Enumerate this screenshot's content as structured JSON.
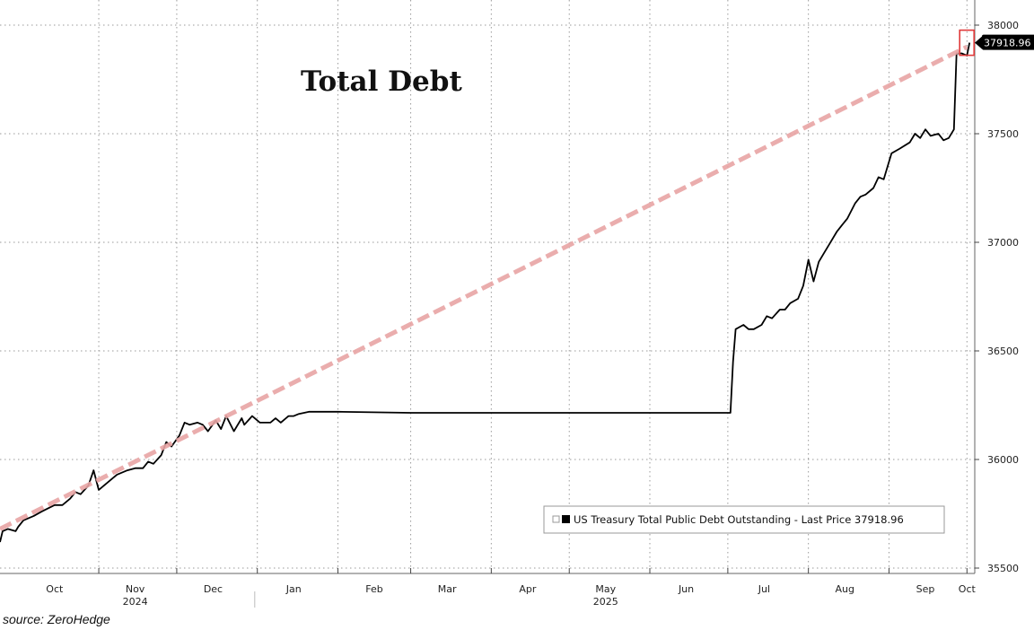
{
  "chart_data": {
    "type": "line",
    "title": "Total Debt",
    "source": "source: ZeroHedge",
    "xlabel": "",
    "ylabel": "",
    "x_range": [
      "2024-09-24",
      "2025-10-04"
    ],
    "ylim": [
      35500,
      38000
    ],
    "y_ticks": [
      {
        "value": 38000,
        "label": "38000"
      },
      {
        "value": 37500,
        "label": "37500"
      },
      {
        "value": 37000,
        "label": "37000"
      },
      {
        "value": 36500,
        "label": "36500"
      },
      {
        "value": 36000,
        "label": "36000"
      },
      {
        "value": 35500,
        "label": "35500"
      }
    ],
    "x_ticks": [
      {
        "date": "2024-10-15",
        "label": "Oct"
      },
      {
        "date": "2024-11-15",
        "label": "Nov"
      },
      {
        "date": "2024-12-15",
        "label": "Dec"
      },
      {
        "date": "2025-01-15",
        "label": "Jan"
      },
      {
        "date": "2025-02-15",
        "label": "Feb"
      },
      {
        "date": "2025-03-15",
        "label": "Mar"
      },
      {
        "date": "2025-04-15",
        "label": "Apr"
      },
      {
        "date": "2025-05-15",
        "label": "May"
      },
      {
        "date": "2025-06-15",
        "label": "Jun"
      },
      {
        "date": "2025-07-15",
        "label": "Jul"
      },
      {
        "date": "2025-08-15",
        "label": "Aug"
      },
      {
        "date": "2025-09-15",
        "label": "Sep"
      },
      {
        "date": "2025-10-01",
        "label": "Oct"
      }
    ],
    "gridline_dates": [
      "2024-11-01",
      "2024-12-01",
      "2025-01-01",
      "2025-02-01",
      "2025-03-01",
      "2025-04-01",
      "2025-05-01",
      "2025-06-01",
      "2025-07-01",
      "2025-08-01",
      "2025-09-01",
      "2025-10-01"
    ],
    "year_labels": [
      {
        "date": "2024-11-15",
        "label": "2024"
      },
      {
        "date": "2025-05-15",
        "label": "2025"
      }
    ],
    "year_separator_date": "2024-12-31",
    "grid": true,
    "legend_position": "bottom-right",
    "last_value_label": "37918.96",
    "series": [
      {
        "name": "US Treasury Total Public Debt Outstanding - Last Price 37918.96",
        "color": "#000000",
        "points": [
          [
            "2024-09-24",
            35620
          ],
          [
            "2024-09-25",
            35670
          ],
          [
            "2024-09-27",
            35680
          ],
          [
            "2024-09-30",
            35670
          ],
          [
            "2024-10-01",
            35690
          ],
          [
            "2024-10-03",
            35720
          ],
          [
            "2024-10-07",
            35740
          ],
          [
            "2024-10-10",
            35760
          ],
          [
            "2024-10-15",
            35790
          ],
          [
            "2024-10-18",
            35790
          ],
          [
            "2024-10-21",
            35820
          ],
          [
            "2024-10-23",
            35850
          ],
          [
            "2024-10-25",
            35840
          ],
          [
            "2024-10-28",
            35880
          ],
          [
            "2024-10-30",
            35950
          ],
          [
            "2024-11-01",
            35860
          ],
          [
            "2024-11-05",
            35900
          ],
          [
            "2024-11-08",
            35930
          ],
          [
            "2024-11-12",
            35950
          ],
          [
            "2024-11-15",
            35960
          ],
          [
            "2024-11-18",
            35960
          ],
          [
            "2024-11-20",
            35990
          ],
          [
            "2024-11-22",
            35980
          ],
          [
            "2024-11-25",
            36020
          ],
          [
            "2024-11-27",
            36080
          ],
          [
            "2024-11-29",
            36060
          ],
          [
            "2024-12-02",
            36110
          ],
          [
            "2024-12-04",
            36170
          ],
          [
            "2024-12-06",
            36160
          ],
          [
            "2024-12-09",
            36170
          ],
          [
            "2024-12-11",
            36160
          ],
          [
            "2024-12-13",
            36130
          ],
          [
            "2024-12-16",
            36180
          ],
          [
            "2024-12-18",
            36140
          ],
          [
            "2024-12-20",
            36200
          ],
          [
            "2024-12-23",
            36130
          ],
          [
            "2024-12-26",
            36190
          ],
          [
            "2024-12-27",
            36160
          ],
          [
            "2024-12-30",
            36200
          ],
          [
            "2025-01-02",
            36170
          ],
          [
            "2025-01-06",
            36170
          ],
          [
            "2025-01-08",
            36190
          ],
          [
            "2025-01-10",
            36170
          ],
          [
            "2025-01-13",
            36200
          ],
          [
            "2025-01-15",
            36200
          ],
          [
            "2025-01-17",
            36210
          ],
          [
            "2025-01-21",
            36220
          ],
          [
            "2025-02-01",
            36220
          ],
          [
            "2025-03-01",
            36215
          ],
          [
            "2025-04-01",
            36215
          ],
          [
            "2025-05-01",
            36215
          ],
          [
            "2025-06-01",
            36215
          ],
          [
            "2025-06-25",
            36215
          ],
          [
            "2025-07-02",
            36215
          ],
          [
            "2025-07-03",
            36450
          ],
          [
            "2025-07-04",
            36600
          ],
          [
            "2025-07-07",
            36620
          ],
          [
            "2025-07-09",
            36600
          ],
          [
            "2025-07-11",
            36600
          ],
          [
            "2025-07-14",
            36620
          ],
          [
            "2025-07-16",
            36660
          ],
          [
            "2025-07-18",
            36650
          ],
          [
            "2025-07-21",
            36690
          ],
          [
            "2025-07-23",
            36690
          ],
          [
            "2025-07-25",
            36720
          ],
          [
            "2025-07-28",
            36740
          ],
          [
            "2025-07-30",
            36800
          ],
          [
            "2025-08-01",
            36920
          ],
          [
            "2025-08-03",
            36820
          ],
          [
            "2025-08-05",
            36910
          ],
          [
            "2025-08-07",
            36950
          ],
          [
            "2025-08-09",
            36990
          ],
          [
            "2025-08-12",
            37050
          ],
          [
            "2025-08-14",
            37080
          ],
          [
            "2025-08-16",
            37110
          ],
          [
            "2025-08-19",
            37180
          ],
          [
            "2025-08-21",
            37210
          ],
          [
            "2025-08-23",
            37220
          ],
          [
            "2025-08-26",
            37250
          ],
          [
            "2025-08-28",
            37300
          ],
          [
            "2025-08-30",
            37290
          ],
          [
            "2025-09-02",
            37410
          ],
          [
            "2025-09-05",
            37430
          ],
          [
            "2025-09-09",
            37460
          ],
          [
            "2025-09-11",
            37500
          ],
          [
            "2025-09-13",
            37480
          ],
          [
            "2025-09-15",
            37520
          ],
          [
            "2025-09-17",
            37490
          ],
          [
            "2025-09-20",
            37500
          ],
          [
            "2025-09-22",
            37470
          ],
          [
            "2025-09-24",
            37480
          ],
          [
            "2025-09-26",
            37520
          ],
          [
            "2025-09-27",
            37870
          ],
          [
            "2025-09-29",
            37870
          ],
          [
            "2025-10-01",
            37860
          ],
          [
            "2025-10-02",
            37918.96
          ]
        ]
      },
      {
        "name": "",
        "color": "#e8a4a4",
        "style": "dashed",
        "points": [
          [
            "2024-09-24",
            35680
          ],
          [
            "2025-10-01",
            37900
          ]
        ]
      }
    ]
  }
}
